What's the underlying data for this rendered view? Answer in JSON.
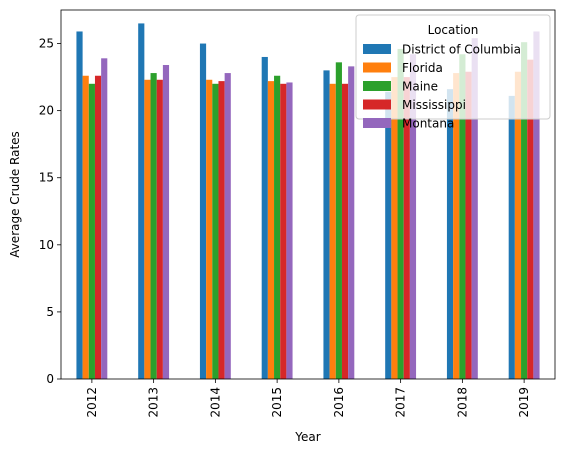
{
  "chart_data": {
    "type": "bar",
    "title": "",
    "xlabel": "Year",
    "ylabel": "Average Crude Rates",
    "categories": [
      "2012",
      "2013",
      "2014",
      "2015",
      "2016",
      "2017",
      "2018",
      "2019"
    ],
    "ylim": [
      0,
      27.5
    ],
    "yticks": [
      0,
      5,
      10,
      15,
      20,
      25
    ],
    "grid": false,
    "legend": {
      "title": "Location",
      "placement": "top-right"
    },
    "series": [
      {
        "name": "District of Columbia",
        "color": "#1f77b4",
        "values": [
          25.9,
          26.5,
          25.0,
          24.0,
          23.0,
          21.4,
          21.6,
          21.1
        ]
      },
      {
        "name": "Florida",
        "color": "#ff7f0e",
        "values": [
          22.6,
          22.3,
          22.3,
          22.2,
          22.0,
          22.5,
          22.8,
          22.9
        ]
      },
      {
        "name": "Maine",
        "color": "#2ca02c",
        "values": [
          22.0,
          22.8,
          22.0,
          22.6,
          23.6,
          24.6,
          24.2,
          25.1
        ]
      },
      {
        "name": "Mississippi",
        "color": "#d62728",
        "values": [
          22.6,
          22.3,
          22.2,
          22.0,
          22.0,
          22.5,
          22.9,
          23.8
        ]
      },
      {
        "name": "Montana",
        "color": "#9467bd",
        "values": [
          23.9,
          23.4,
          22.8,
          22.1,
          23.3,
          24.2,
          25.4,
          25.9
        ]
      }
    ]
  }
}
